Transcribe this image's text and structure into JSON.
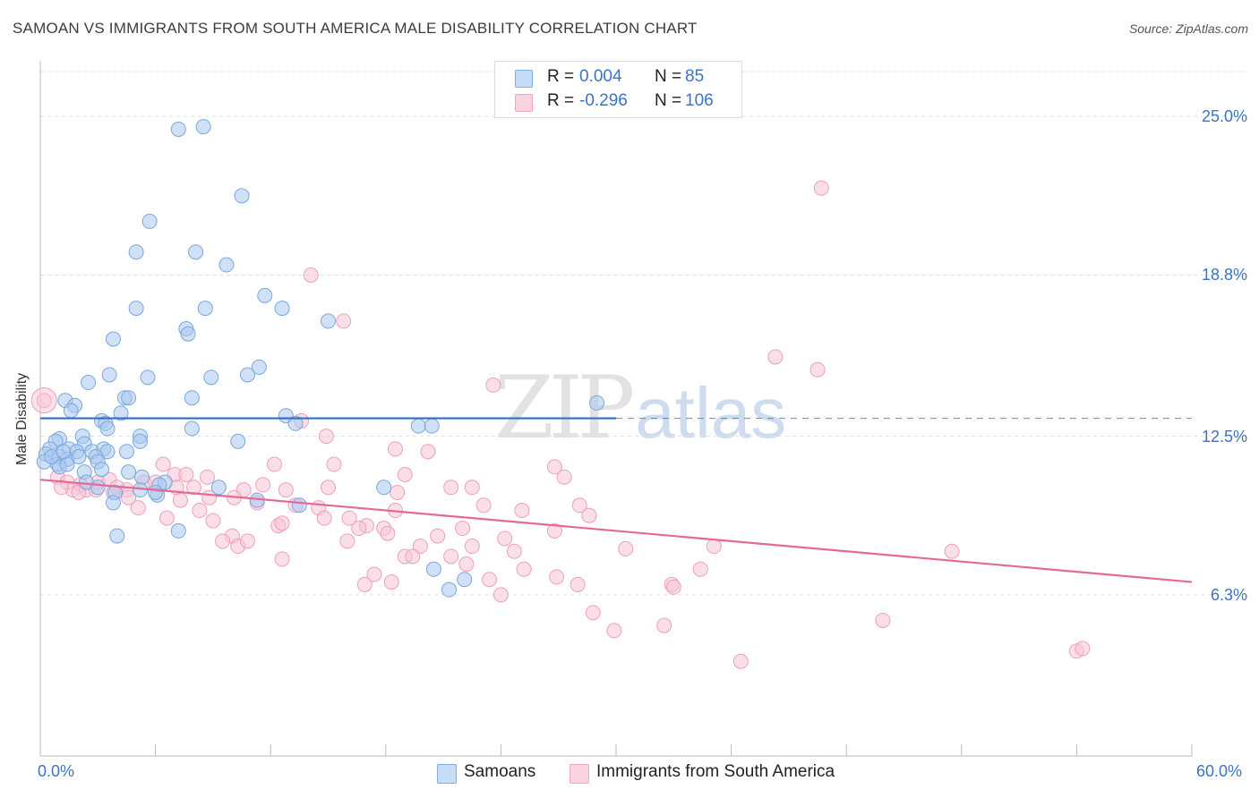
{
  "header": {
    "title": "SAMOAN VS IMMIGRANTS FROM SOUTH AMERICA MALE DISABILITY CORRELATION CHART",
    "source": "Source: ZipAtlas.com"
  },
  "watermark": {
    "zip": "ZIP",
    "atlas": "atlas"
  },
  "legend": {
    "rows": [
      {
        "r_label": "R =",
        "r_value": "0.004",
        "n_label": "N =",
        "n_value": "85",
        "color": "#7eaee6"
      },
      {
        "r_label": "R =",
        "r_value": "-0.296",
        "n_label": "N =",
        "n_value": "106",
        "color": "#f4a6bf"
      }
    ]
  },
  "bottom_legend": [
    {
      "label": "Samoans",
      "color": "#7eaee6"
    },
    {
      "label": "Immigrants from South America",
      "color": "#f4a6bf"
    }
  ],
  "colors": {
    "blue_fill": "#a9c8f0",
    "blue_stroke": "#7ba7dc",
    "blue_line": "#2f6fc4",
    "pink_fill": "#f8c4d5",
    "pink_stroke": "#ef9fba",
    "pink_line": "#e4699a",
    "grid": "#e1e1e1",
    "axis_text": "#3b74c4"
  },
  "chart_data": {
    "type": "scatter",
    "title": "SAMOAN VS IMMIGRANTS FROM SOUTH AMERICA MALE DISABILITY CORRELATION CHART",
    "xlabel": "",
    "ylabel": "Male Disability",
    "xlim": [
      0,
      60
    ],
    "ylim": [
      0,
      27
    ],
    "x_tick_labels": [
      "0.0%",
      "60.0%"
    ],
    "y_ticks": [
      6.3,
      12.5,
      18.8,
      25.0
    ],
    "y_tick_labels": [
      "6.3%",
      "12.5%",
      "18.8%",
      "25.0%"
    ],
    "grid": "horizontal dashed",
    "legend_position": "top-center",
    "series": [
      {
        "name": "Samoans",
        "r": 0.004,
        "n": 85,
        "trend": {
          "x": [
            0,
            30
          ],
          "y": [
            13.2,
            13.2
          ],
          "dashed_to_x": 60
        },
        "points": [
          [
            8.5,
            24.6
          ],
          [
            7.2,
            24.5
          ],
          [
            10.5,
            21.9
          ],
          [
            5.7,
            20.9
          ],
          [
            5.0,
            19.7
          ],
          [
            8.1,
            19.7
          ],
          [
            9.7,
            19.2
          ],
          [
            11.7,
            18.0
          ],
          [
            12.6,
            17.5
          ],
          [
            5.0,
            17.5
          ],
          [
            8.6,
            17.5
          ],
          [
            15.0,
            17.0
          ],
          [
            7.6,
            16.7
          ],
          [
            7.7,
            16.5
          ],
          [
            3.8,
            16.3
          ],
          [
            11.4,
            15.2
          ],
          [
            10.8,
            14.9
          ],
          [
            3.6,
            14.9
          ],
          [
            5.6,
            14.8
          ],
          [
            8.9,
            14.8
          ],
          [
            2.5,
            14.6
          ],
          [
            4.4,
            14.0
          ],
          [
            4.6,
            14.0
          ],
          [
            7.9,
            14.0
          ],
          [
            1.3,
            13.9
          ],
          [
            1.8,
            13.7
          ],
          [
            1.6,
            13.5
          ],
          [
            4.2,
            13.4
          ],
          [
            12.8,
            13.3
          ],
          [
            13.3,
            13.0
          ],
          [
            3.2,
            13.1
          ],
          [
            3.4,
            13.0
          ],
          [
            3.5,
            12.8
          ],
          [
            7.9,
            12.8
          ],
          [
            19.7,
            12.9
          ],
          [
            20.4,
            12.9
          ],
          [
            2.2,
            12.5
          ],
          [
            5.2,
            12.5
          ],
          [
            1.0,
            12.4
          ],
          [
            0.8,
            12.3
          ],
          [
            2.3,
            12.2
          ],
          [
            5.2,
            12.3
          ],
          [
            10.3,
            12.3
          ],
          [
            29.0,
            13.8
          ],
          [
            0.5,
            12.0
          ],
          [
            1.5,
            12.0
          ],
          [
            1.9,
            11.9
          ],
          [
            2.7,
            11.9
          ],
          [
            3.3,
            12.0
          ],
          [
            3.5,
            11.9
          ],
          [
            4.5,
            11.9
          ],
          [
            0.3,
            11.8
          ],
          [
            1.0,
            11.7
          ],
          [
            1.4,
            11.6
          ],
          [
            0.2,
            11.5
          ],
          [
            2.0,
            11.7
          ],
          [
            2.9,
            11.7
          ],
          [
            3.0,
            11.5
          ],
          [
            0.9,
            11.4
          ],
          [
            1.0,
            11.3
          ],
          [
            1.4,
            11.4
          ],
          [
            2.3,
            11.1
          ],
          [
            3.2,
            11.2
          ],
          [
            4.6,
            11.1
          ],
          [
            5.3,
            10.9
          ],
          [
            6.5,
            10.7
          ],
          [
            2.4,
            10.7
          ],
          [
            6.2,
            10.6
          ],
          [
            3.0,
            10.5
          ],
          [
            9.3,
            10.5
          ],
          [
            17.9,
            10.5
          ],
          [
            5.2,
            10.4
          ],
          [
            3.9,
            10.3
          ],
          [
            6.1,
            10.2
          ],
          [
            6.0,
            10.3
          ],
          [
            11.3,
            10.0
          ],
          [
            13.5,
            9.8
          ],
          [
            3.8,
            9.9
          ],
          [
            7.2,
            8.8
          ],
          [
            4.0,
            8.6
          ],
          [
            20.5,
            7.3
          ],
          [
            22.1,
            6.9
          ],
          [
            21.3,
            6.5
          ],
          [
            0.6,
            11.7
          ],
          [
            1.2,
            11.9
          ]
        ]
      },
      {
        "name": "Immigrants from South America",
        "r": -0.296,
        "n": 106,
        "trend": {
          "x": [
            0,
            60
          ],
          "y": [
            10.8,
            6.8
          ]
        },
        "points": [
          [
            40.7,
            22.2
          ],
          [
            14.1,
            18.8
          ],
          [
            15.8,
            17.0
          ],
          [
            38.3,
            15.6
          ],
          [
            40.5,
            15.1
          ],
          [
            23.6,
            14.5
          ],
          [
            0.2,
            13.9
          ],
          [
            13.6,
            13.1
          ],
          [
            14.9,
            12.5
          ],
          [
            18.5,
            12.0
          ],
          [
            20.2,
            11.9
          ],
          [
            6.4,
            11.4
          ],
          [
            12.2,
            11.4
          ],
          [
            15.3,
            11.4
          ],
          [
            26.8,
            11.3
          ],
          [
            19.0,
            11.0
          ],
          [
            7.0,
            11.0
          ],
          [
            7.6,
            11.0
          ],
          [
            8.7,
            10.9
          ],
          [
            27.3,
            10.9
          ],
          [
            0.9,
            10.9
          ],
          [
            1.4,
            10.7
          ],
          [
            2.1,
            10.6
          ],
          [
            3.0,
            10.7
          ],
          [
            3.6,
            10.8
          ],
          [
            5.4,
            10.7
          ],
          [
            6.0,
            10.7
          ],
          [
            7.1,
            10.5
          ],
          [
            8.0,
            10.5
          ],
          [
            11.6,
            10.6
          ],
          [
            21.4,
            10.5
          ],
          [
            22.5,
            10.5
          ],
          [
            15.0,
            10.5
          ],
          [
            4.5,
            10.4
          ],
          [
            4.0,
            10.5
          ],
          [
            1.7,
            10.4
          ],
          [
            2.4,
            10.4
          ],
          [
            2.9,
            10.4
          ],
          [
            1.1,
            10.5
          ],
          [
            2.0,
            10.3
          ],
          [
            3.8,
            10.3
          ],
          [
            10.6,
            10.4
          ],
          [
            12.8,
            10.4
          ],
          [
            4.6,
            10.1
          ],
          [
            8.8,
            10.1
          ],
          [
            7.3,
            10.0
          ],
          [
            10.1,
            10.1
          ],
          [
            13.3,
            9.8
          ],
          [
            14.5,
            9.7
          ],
          [
            23.1,
            9.8
          ],
          [
            25.1,
            9.6
          ],
          [
            28.1,
            9.8
          ],
          [
            18.5,
            9.6
          ],
          [
            8.3,
            9.6
          ],
          [
            5.1,
            9.7
          ],
          [
            28.6,
            9.4
          ],
          [
            6.6,
            9.3
          ],
          [
            16.1,
            9.3
          ],
          [
            9.0,
            9.2
          ],
          [
            14.8,
            9.3
          ],
          [
            17.0,
            9.0
          ],
          [
            12.4,
            9.0
          ],
          [
            17.9,
            8.9
          ],
          [
            22.0,
            8.9
          ],
          [
            16.6,
            8.9
          ],
          [
            26.8,
            8.8
          ],
          [
            18.1,
            8.7
          ],
          [
            20.7,
            8.6
          ],
          [
            10.0,
            8.6
          ],
          [
            24.2,
            8.5
          ],
          [
            16.0,
            8.4
          ],
          [
            19.8,
            8.2
          ],
          [
            9.5,
            8.4
          ],
          [
            10.3,
            8.2
          ],
          [
            22.5,
            8.2
          ],
          [
            10.8,
            8.4
          ],
          [
            24.7,
            8.0
          ],
          [
            30.5,
            8.1
          ],
          [
            35.1,
            8.2
          ],
          [
            47.5,
            8.0
          ],
          [
            19.0,
            7.8
          ],
          [
            19.4,
            7.8
          ],
          [
            21.4,
            7.8
          ],
          [
            12.6,
            7.7
          ],
          [
            22.2,
            7.5
          ],
          [
            17.4,
            7.1
          ],
          [
            25.2,
            7.3
          ],
          [
            26.9,
            7.0
          ],
          [
            34.4,
            7.3
          ],
          [
            23.4,
            6.9
          ],
          [
            16.9,
            6.7
          ],
          [
            32.9,
            6.7
          ],
          [
            33.0,
            6.6
          ],
          [
            18.3,
            6.8
          ],
          [
            24.0,
            6.3
          ],
          [
            28.0,
            6.7
          ],
          [
            28.8,
            5.6
          ],
          [
            29.9,
            4.9
          ],
          [
            32.5,
            5.1
          ],
          [
            43.9,
            5.3
          ],
          [
            36.5,
            3.7
          ],
          [
            54.0,
            4.1
          ],
          [
            54.3,
            4.2
          ],
          [
            12.6,
            9.1
          ],
          [
            18.6,
            10.3
          ],
          [
            11.3,
            9.9
          ]
        ]
      }
    ]
  }
}
